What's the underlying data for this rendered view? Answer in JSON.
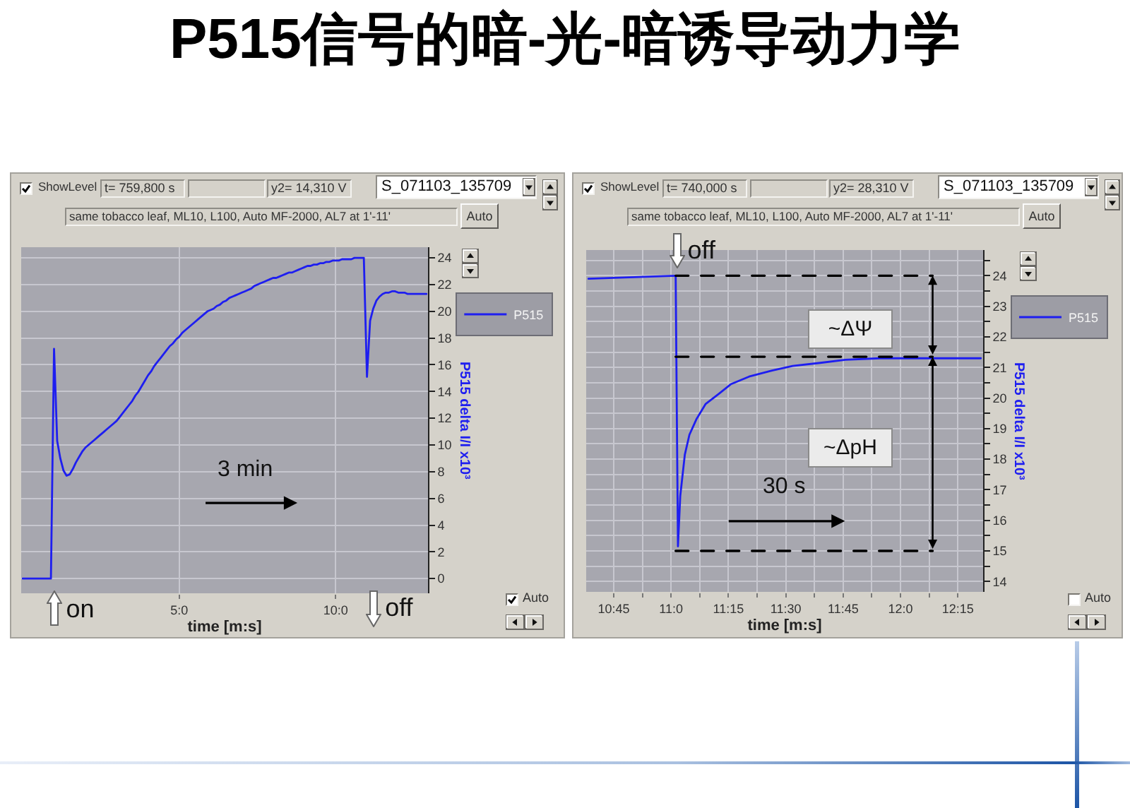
{
  "chart_data": [
    {
      "type": "line",
      "title": "P515信号的暗-光-暗诱导动力学",
      "xlabel": "time [m:s]",
      "ylabel": "P515 delta I/I x10³",
      "categories": [
        null,
        null,
        null,
        null,
        null,
        null,
        null,
        null,
        null,
        null,
        null,
        null,
        null,
        null,
        null,
        null,
        null,
        null,
        null,
        null,
        null,
        null,
        null,
        null,
        null,
        null,
        null,
        null,
        null,
        null,
        null,
        null,
        null,
        null,
        null,
        null,
        null,
        null,
        null,
        null,
        null,
        null,
        null,
        null,
        null,
        null,
        null,
        null,
        null,
        null,
        "5:0",
        null,
        null,
        null,
        null,
        null,
        null,
        null,
        null,
        null,
        null,
        null,
        null,
        null,
        null,
        null,
        null,
        null,
        null,
        null,
        null,
        null,
        null,
        null,
        null,
        null,
        null,
        null,
        null,
        null,
        null,
        null,
        null,
        null,
        null,
        null,
        null,
        null,
        null,
        null,
        null,
        null,
        null,
        null,
        null,
        null,
        null,
        null,
        null,
        null,
        "10:0",
        null,
        null,
        null,
        null,
        null,
        null,
        null,
        null,
        null,
        null,
        null,
        null,
        null,
        null,
        null,
        null,
        null,
        null,
        null,
        null,
        null,
        null,
        null,
        null,
        null,
        null,
        null,
        null,
        null
      ],
      "series": [
        {
          "name": "P515",
          "color": "#1e1ef0",
          "values": [
            0.0,
            0.0,
            0.0,
            0.0,
            0.0,
            0.0,
            0.0,
            0.0,
            0.0,
            0.0,
            17.2,
            10.3,
            9.0,
            8.1,
            7.7,
            7.8,
            8.2,
            8.7,
            9.1,
            9.5,
            9.8,
            10.0,
            10.2,
            10.4,
            10.6,
            10.8,
            11.0,
            11.2,
            11.4,
            11.6,
            11.8,
            12.1,
            12.4,
            12.7,
            13.0,
            13.3,
            13.7,
            14.0,
            14.4,
            14.8,
            15.2,
            15.5,
            15.9,
            16.2,
            16.5,
            16.8,
            17.1,
            17.4,
            17.6,
            17.9,
            18.1,
            18.4,
            18.6,
            18.8,
            19.0,
            19.2,
            19.4,
            19.6,
            19.8,
            20.0,
            20.1,
            20.2,
            20.4,
            20.5,
            20.7,
            20.8,
            21.0,
            21.1,
            21.2,
            21.3,
            21.4,
            21.5,
            21.6,
            21.7,
            21.9,
            22.0,
            22.1,
            22.2,
            22.3,
            22.4,
            22.5,
            22.5,
            22.6,
            22.7,
            22.8,
            22.9,
            22.9,
            23.0,
            23.1,
            23.2,
            23.3,
            23.4,
            23.4,
            23.5,
            23.5,
            23.6,
            23.6,
            23.7,
            23.7,
            23.8,
            23.8,
            23.8,
            23.9,
            23.9,
            23.9,
            23.9,
            24.0,
            24.0,
            24.0,
            24.0,
            15.1,
            19.3,
            20.2,
            20.8,
            21.1,
            21.3,
            21.4,
            21.4,
            21.5,
            21.5,
            21.4,
            21.4,
            21.4,
            21.3,
            21.3,
            21.3,
            21.3,
            21.3,
            21.3,
            21.3
          ]
        }
      ],
      "ylim": [
        -1.1,
        24.8
      ],
      "yticks": [
        0,
        2,
        4,
        6,
        8,
        10,
        12,
        14,
        16,
        18,
        20,
        22,
        24
      ],
      "grid": true,
      "legend": "right",
      "annotations": [
        "ShowLevel",
        "t= 759,800 s",
        "y2= 14,310 V",
        "S_071103_135709",
        "same tobacco leaf, ML10, L100, Auto MF-2000, AL7 at 1'-11'",
        "Auto",
        "Auto",
        "3 min",
        "on",
        "off"
      ]
    },
    {
      "type": "line",
      "xlabel": "time [m:s]",
      "ylabel": "P515 delta I/I x10³",
      "x": [
        10.64,
        11.02,
        11.03,
        11.04,
        11.06,
        11.08,
        11.11,
        11.15,
        11.21,
        11.26,
        11.34,
        11.44,
        11.53,
        11.65,
        11.76,
        11.91,
        12.11,
        12.14,
        12.35
      ],
      "series": [
        {
          "name": "P515",
          "color": "#1e1ef0",
          "values": [
            23.9,
            24.0,
            15.15,
            16.8,
            18.15,
            18.8,
            19.3,
            19.8,
            20.15,
            20.45,
            20.7,
            20.9,
            21.05,
            21.15,
            21.25,
            21.3,
            21.3,
            21.3,
            21.3
          ]
        },
        {
          "type": "line",
          "color": "#000000",
          "line_style": "dashed",
          "values": [
            null,
            24,
            24,
            24,
            24,
            24,
            24,
            24,
            24,
            24,
            24,
            24,
            24,
            24,
            24,
            24,
            24,
            24,
            null
          ]
        },
        {
          "type": "line",
          "color": "#000000",
          "line_style": "dashed",
          "values": [
            null,
            21.35,
            21.35,
            21.35,
            21.35,
            21.35,
            21.35,
            21.35,
            21.35,
            21.35,
            21.35,
            21.35,
            21.35,
            21.35,
            21.35,
            21.35,
            21.35,
            21.35,
            null
          ]
        },
        {
          "type": "line",
          "color": "#000000",
          "line_style": "dashed",
          "values": [
            null,
            15,
            15,
            15,
            15,
            15,
            15,
            15,
            15,
            15,
            15,
            15,
            15,
            15,
            15,
            15,
            15,
            15,
            null
          ]
        }
      ],
      "xlim": [
        10.63,
        12.36
      ],
      "ylim": [
        13.66,
        24.84
      ],
      "xticks": [
        {
          "value": 10.75,
          "label": "10:45"
        },
        {
          "value": 10.875,
          "label": null
        },
        {
          "value": 11,
          "label": "11:0"
        },
        {
          "value": 11.125,
          "label": null
        },
        {
          "value": 11.25,
          "label": "11:15"
        },
        {
          "value": 11.375,
          "label": null
        },
        {
          "value": 11.5,
          "label": "11:30"
        },
        {
          "value": 11.625,
          "label": null
        },
        {
          "value": 11.75,
          "label": "11:45"
        },
        {
          "value": 11.875,
          "label": null
        },
        {
          "value": 12,
          "label": "12:0"
        },
        {
          "value": 12.125,
          "label": null
        },
        {
          "value": 12.25,
          "label": "12:15"
        }
      ],
      "yticks": [
        14,
        {
          "value": 14.5,
          "label": null
        },
        15,
        {
          "value": 15.5,
          "label": null
        },
        16,
        {
          "value": 16.5,
          "label": null
        },
        17,
        {
          "value": 17.5,
          "label": null
        },
        18,
        {
          "value": 18.5,
          "label": null
        },
        19,
        {
          "value": 19.5,
          "label": null
        },
        20,
        {
          "value": 20.5,
          "label": null
        },
        21,
        {
          "value": 21.5,
          "label": null
        },
        22,
        {
          "value": 22.5,
          "label": null
        },
        23,
        {
          "value": 23.5,
          "label": null
        },
        24,
        {
          "value": 24.5,
          "label": null
        }
      ],
      "grid": true,
      "legend": "right",
      "annotations": [
        "ShowLevel",
        "t= 740,000 s",
        "y2= 28,310 V",
        "S_071103_135709",
        "same tobacco leaf, ML10, L100, Auto MF-2000, AL7 at 1'-11'",
        "Auto",
        "Auto",
        "off",
        "~ΔΨ",
        "~ΔpH",
        "30 s"
      ]
    }
  ]
}
